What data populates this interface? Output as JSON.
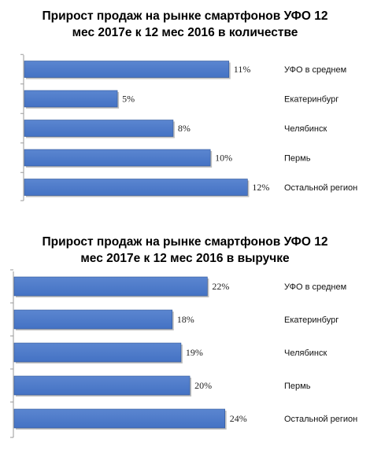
{
  "chart_data": [
    {
      "type": "bar",
      "orientation": "horizontal",
      "title_line1": "Прирост продаж на рынке смартфонов УФО 12",
      "title_line2": "мес 2017е к 12 мес 2016 в количестве",
      "categories": [
        "УФО в среднем",
        "Екатеринбург",
        "Челябинск",
        "Пермь",
        "Остальной регион"
      ],
      "values": [
        11,
        5,
        8,
        10,
        12
      ],
      "value_labels": [
        "11%",
        "5%",
        "8%",
        "10%",
        "12%"
      ],
      "bar_color": "#4472c4",
      "xlim": [
        0,
        13
      ],
      "grid": false,
      "legend": "none"
    },
    {
      "type": "bar",
      "orientation": "horizontal",
      "title_line1": "Прирост продаж на рынке смартфонов УФО 12",
      "title_line2": "мес 2017е к 12 мес 2016 в выручке",
      "categories": [
        "УФО в среднем",
        "Екатеринбург",
        "Челябинск",
        "Пермь",
        "Остальной регион"
      ],
      "values": [
        22,
        18,
        19,
        20,
        24
      ],
      "value_labels": [
        "22%",
        "18%",
        "19%",
        "20%",
        "24%"
      ],
      "bar_color": "#4472c4",
      "xlim": [
        0,
        26
      ],
      "grid": false,
      "legend": "none"
    }
  ]
}
